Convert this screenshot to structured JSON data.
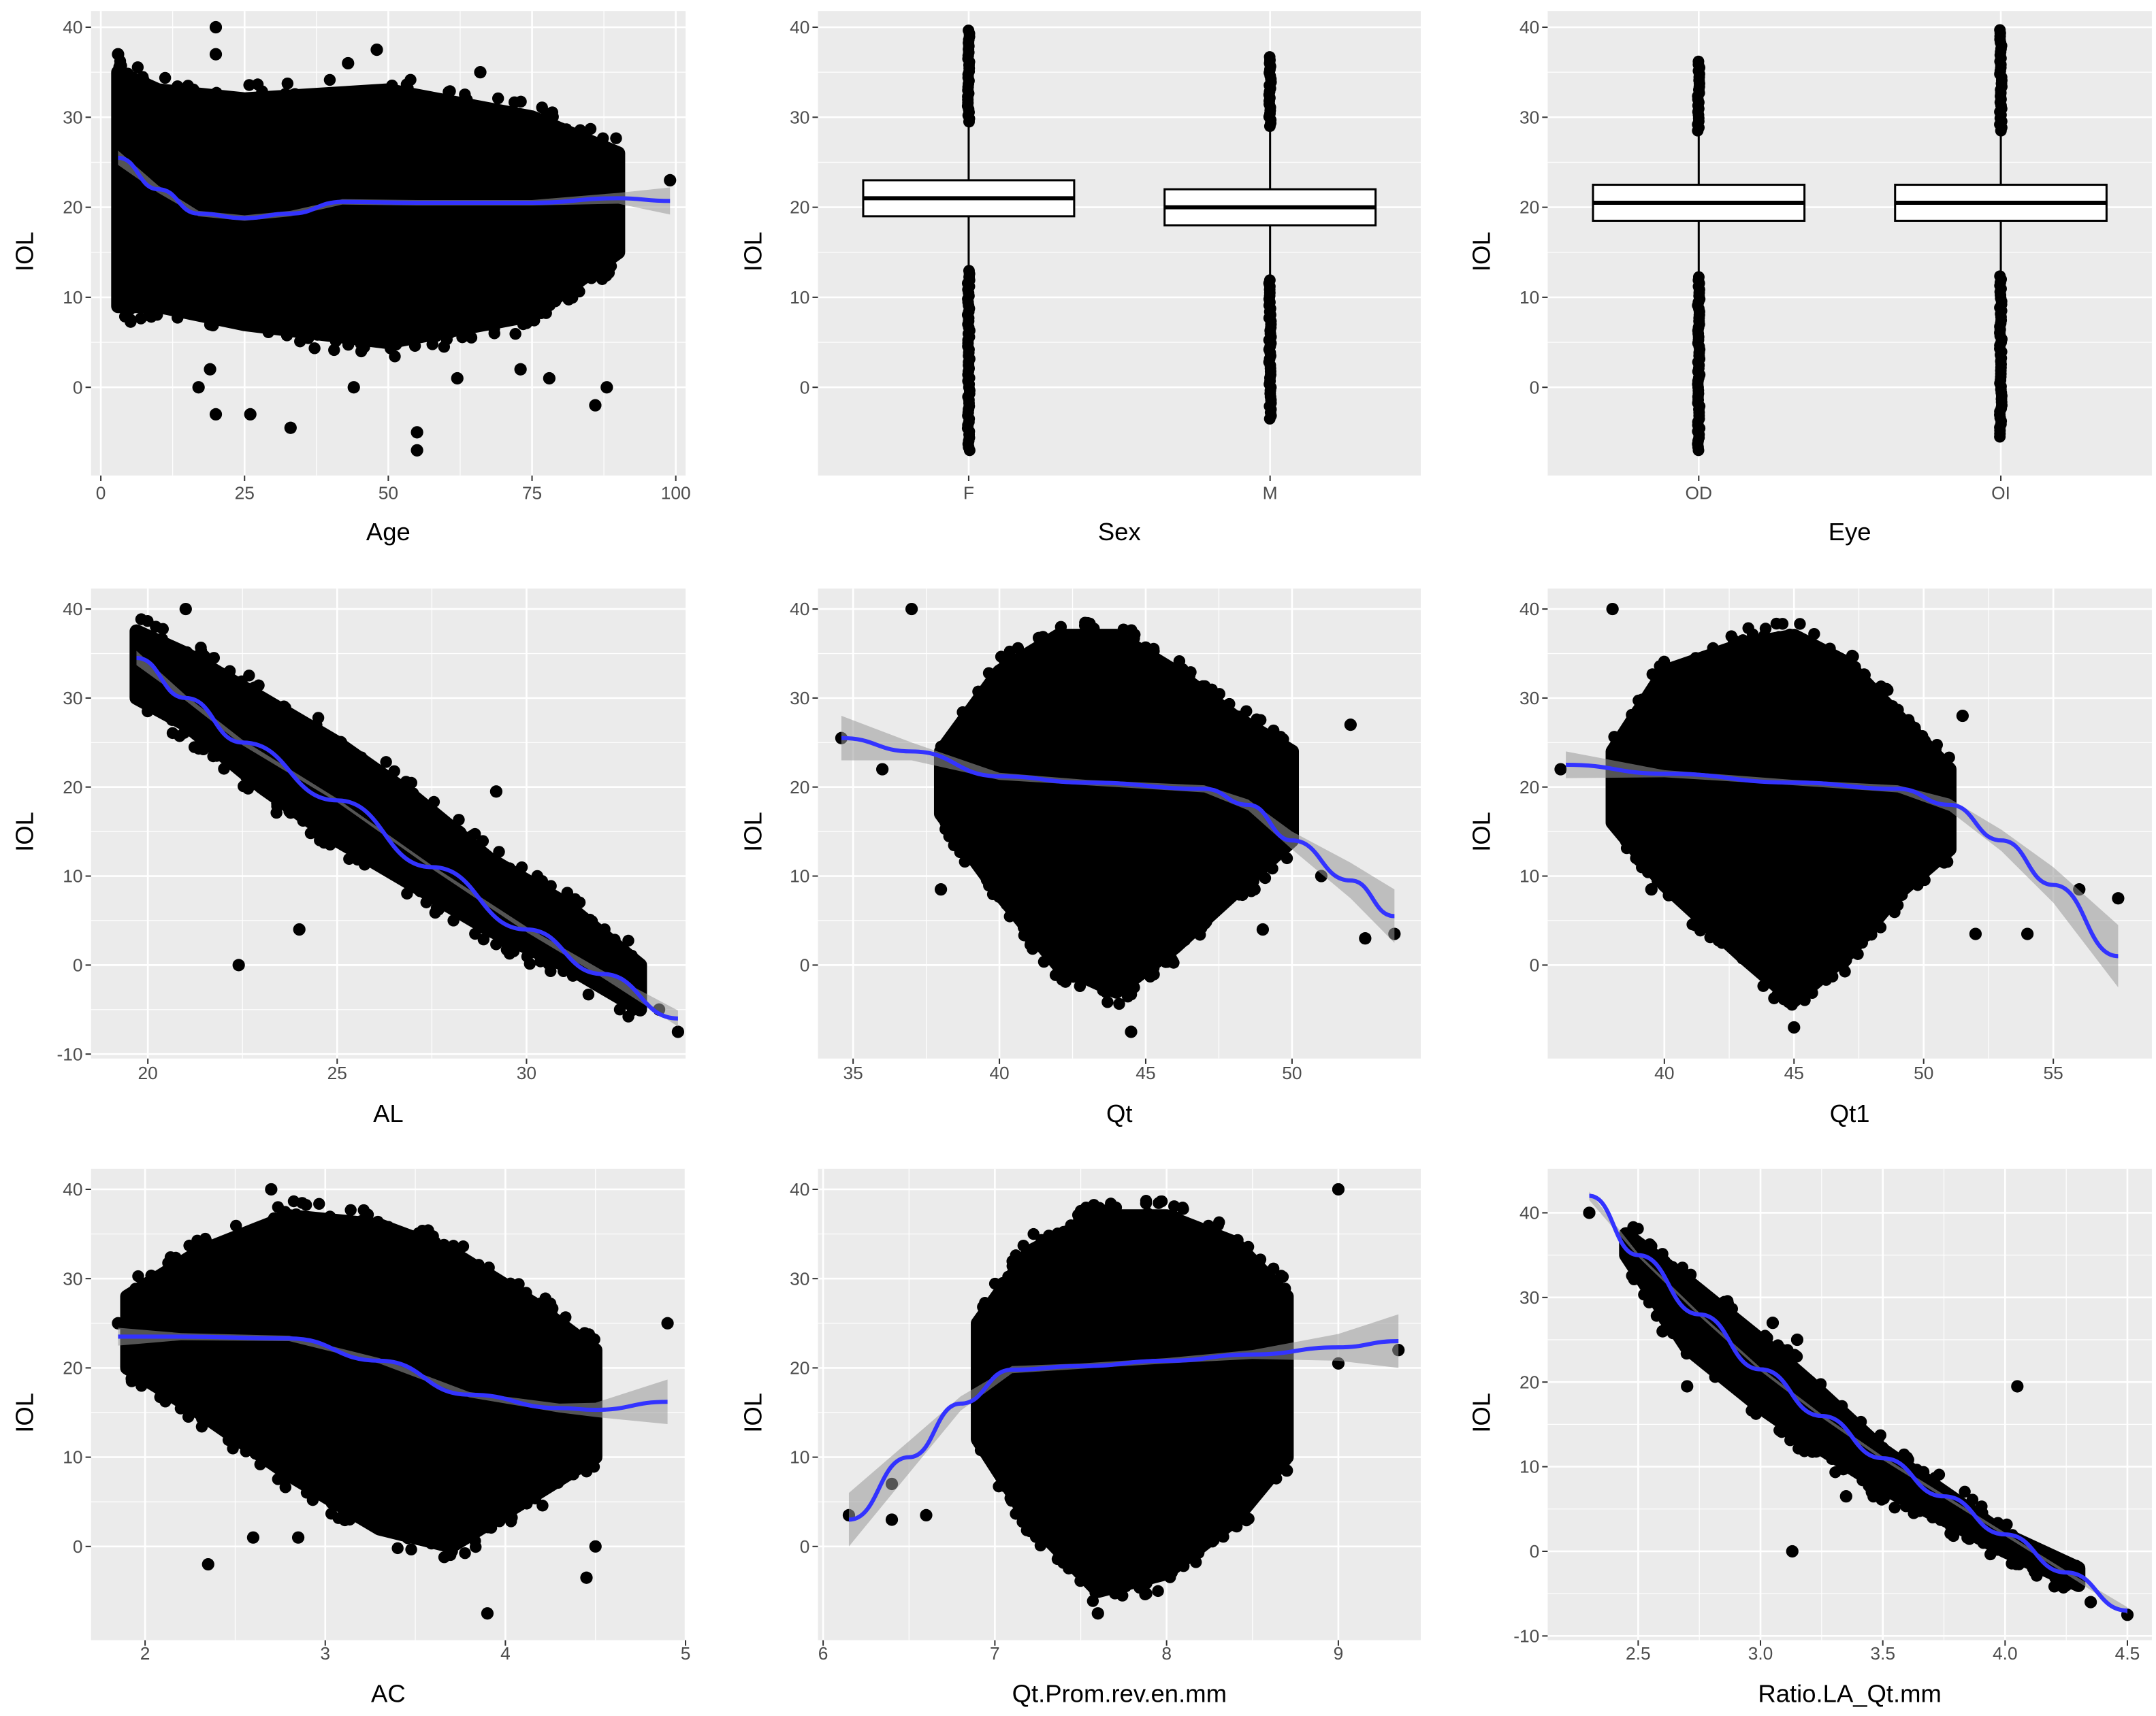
{
  "chart_data": [
    {
      "type": "scatter",
      "xlabel": "Age",
      "ylabel": "IOL",
      "xlim": [
        -1.7,
        101.7
      ],
      "ylim": [
        -9.8,
        41.8
      ],
      "xticks": [
        0,
        25,
        50,
        75,
        100
      ],
      "xtick_labels": [
        "0",
        "25",
        "50",
        "75",
        "100"
      ],
      "yticks": [
        0,
        10,
        20,
        30,
        40
      ],
      "ytick_labels": [
        "0",
        "10",
        "20",
        "30",
        "40"
      ],
      "grid": true,
      "cloud": [
        [
          3,
          9,
          35
        ],
        [
          10,
          9,
          33
        ],
        [
          25,
          7,
          32
        ],
        [
          50,
          5,
          33
        ],
        [
          75,
          8,
          30
        ],
        [
          90,
          15,
          26
        ]
      ],
      "outliers": [
        [
          20,
          40
        ],
        [
          20,
          37
        ],
        [
          3,
          37
        ],
        [
          48,
          37.5
        ],
        [
          43,
          36
        ],
        [
          66,
          35
        ],
        [
          19,
          2
        ],
        [
          17,
          0
        ],
        [
          20,
          -3
        ],
        [
          26,
          -3
        ],
        [
          33,
          -4.5
        ],
        [
          44,
          0
        ],
        [
          55,
          -7
        ],
        [
          55,
          -5
        ],
        [
          62,
          1
        ],
        [
          86,
          -2
        ],
        [
          88,
          0
        ],
        [
          99,
          23
        ],
        [
          78,
          1
        ],
        [
          73,
          2
        ]
      ],
      "smooth": [
        [
          3,
          25.5,
          0.8
        ],
        [
          10,
          22,
          0.4
        ],
        [
          17,
          19.3,
          0.3
        ],
        [
          25,
          18.8,
          0.3
        ],
        [
          33,
          19.3,
          0.3
        ],
        [
          42,
          20.6,
          0.3
        ],
        [
          55,
          20.5,
          0.3
        ],
        [
          75,
          20.5,
          0.3
        ],
        [
          90,
          21,
          0.6
        ],
        [
          99,
          20.7,
          1.5
        ]
      ]
    },
    {
      "type": "boxplot",
      "xlabel": "Sex",
      "ylabel": "IOL",
      "categories": [
        "F",
        "M"
      ],
      "ylim": [
        -9.8,
        41.8
      ],
      "yticks": [
        0,
        10,
        20,
        30,
        40
      ],
      "ytick_labels": [
        "0",
        "10",
        "20",
        "30",
        "40"
      ],
      "grid": true,
      "boxes": [
        {
          "q1": 19,
          "median": 21,
          "q3": 23,
          "whisker_low": 13,
          "whisker_high": 29.5,
          "outlier_low": -7,
          "outlier_high": 40
        },
        {
          "q1": 18,
          "median": 20,
          "q3": 22,
          "whisker_low": 12,
          "whisker_high": 29,
          "outlier_low": -3.5,
          "outlier_high": 37
        }
      ]
    },
    {
      "type": "boxplot",
      "xlabel": "Eye",
      "ylabel": "IOL",
      "categories": [
        "OD",
        "OI"
      ],
      "ylim": [
        -9.8,
        41.8
      ],
      "yticks": [
        0,
        10,
        20,
        30,
        40
      ],
      "ytick_labels": [
        "0",
        "10",
        "20",
        "30",
        "40"
      ],
      "grid": true,
      "boxes": [
        {
          "q1": 18.5,
          "median": 20.5,
          "q3": 22.5,
          "whisker_low": 12.5,
          "whisker_high": 28.5,
          "outlier_low": -7,
          "outlier_high": 36.5
        },
        {
          "q1": 18.5,
          "median": 20.5,
          "q3": 22.5,
          "whisker_low": 12.5,
          "whisker_high": 28.5,
          "outlier_low": -5.5,
          "outlier_high": 40
        }
      ]
    },
    {
      "type": "scatter",
      "xlabel": "AL",
      "ylabel": "IOL",
      "xlim": [
        18.5,
        34.2
      ],
      "ylim": [
        -10.5,
        42.3
      ],
      "xticks": [
        20,
        25,
        30
      ],
      "xtick_labels": [
        "20",
        "25",
        "30"
      ],
      "yticks": [
        -10,
        0,
        10,
        20,
        30,
        40
      ],
      "ytick_labels": [
        "-10",
        "0",
        "10",
        "20",
        "30",
        "40"
      ],
      "grid": true,
      "cloud": [
        [
          19.7,
          30,
          37.5
        ],
        [
          21,
          27,
          35
        ],
        [
          23,
          20,
          30
        ],
        [
          25,
          14,
          25
        ],
        [
          27,
          9,
          19
        ],
        [
          29,
          4,
          12
        ],
        [
          31,
          0,
          7
        ],
        [
          33,
          -5,
          0
        ]
      ],
      "outliers": [
        [
          21,
          40
        ],
        [
          22.4,
          0
        ],
        [
          29.2,
          19.5
        ],
        [
          24,
          4
        ],
        [
          30.5,
          8
        ],
        [
          34,
          -7.5
        ],
        [
          33.5,
          -5
        ]
      ],
      "smooth": [
        [
          19.7,
          34.5,
          0.8
        ],
        [
          21,
          30,
          0.3
        ],
        [
          22.5,
          25,
          0.3
        ],
        [
          25,
          18.5,
          0.2
        ],
        [
          27.5,
          11,
          0.2
        ],
        [
          30,
          4,
          0.3
        ],
        [
          32,
          -1,
          0.4
        ],
        [
          34,
          -6,
          0.9
        ]
      ]
    },
    {
      "type": "scatter",
      "xlabel": "Qt",
      "ylabel": "IOL",
      "xlim": [
        33.8,
        54.4
      ],
      "ylim": [
        -10.5,
        42.3
      ],
      "xticks": [
        35,
        40,
        45,
        50
      ],
      "xtick_labels": [
        "35",
        "40",
        "45",
        "50"
      ],
      "yticks": [
        0,
        10,
        20,
        30,
        40
      ],
      "ytick_labels": [
        "0",
        "10",
        "20",
        "30",
        "40"
      ],
      "grid": true,
      "cloud": [
        [
          38,
          17,
          24
        ],
        [
          40,
          8,
          33
        ],
        [
          42,
          0,
          37
        ],
        [
          44,
          -3,
          37
        ],
        [
          46,
          2,
          33
        ],
        [
          48,
          8,
          28
        ],
        [
          50,
          14,
          24
        ]
      ],
      "outliers": [
        [
          37,
          40
        ],
        [
          34.6,
          25.5
        ],
        [
          36,
          22
        ],
        [
          38,
          8.5
        ],
        [
          52.5,
          3
        ],
        [
          53.5,
          3.5
        ],
        [
          51,
          10
        ],
        [
          52,
          27
        ],
        [
          49,
          4
        ],
        [
          44.5,
          -7.5
        ]
      ],
      "smooth": [
        [
          34.6,
          25.5,
          2.5
        ],
        [
          37,
          24,
          1
        ],
        [
          40,
          21.2,
          0.4
        ],
        [
          43,
          20.5,
          0.3
        ],
        [
          47,
          19.8,
          0.4
        ],
        [
          48.5,
          18,
          0.6
        ],
        [
          50,
          14,
          1
        ],
        [
          52,
          9.5,
          2
        ],
        [
          53.5,
          5.5,
          3
        ]
      ]
    },
    {
      "type": "scatter",
      "xlabel": "Qt1",
      "ylabel": "IOL",
      "xlim": [
        35.5,
        58.8
      ],
      "ylim": [
        -10.5,
        42.3
      ],
      "xticks": [
        40,
        45,
        50,
        55
      ],
      "xtick_labels": [
        "40",
        "45",
        "50",
        "55"
      ],
      "yticks": [
        0,
        10,
        20,
        30,
        40
      ],
      "ytick_labels": [
        "0",
        "10",
        "20",
        "30",
        "40"
      ],
      "grid": true,
      "cloud": [
        [
          38,
          16,
          24
        ],
        [
          40,
          9,
          33
        ],
        [
          43,
          1,
          36
        ],
        [
          45,
          -4,
          37
        ],
        [
          47,
          1,
          34
        ],
        [
          49,
          8,
          28
        ],
        [
          51,
          13,
          22
        ]
      ],
      "outliers": [
        [
          38,
          40
        ],
        [
          36,
          22
        ],
        [
          39.5,
          8.5
        ],
        [
          52,
          3.5
        ],
        [
          54,
          3.5
        ],
        [
          56,
          8.5
        ],
        [
          57.5,
          7.5
        ],
        [
          51.5,
          28
        ],
        [
          45,
          -7
        ]
      ],
      "smooth": [
        [
          36.2,
          22.5,
          1.5
        ],
        [
          40,
          21.5,
          0.4
        ],
        [
          45,
          20.5,
          0.3
        ],
        [
          49,
          19.8,
          0.4
        ],
        [
          51,
          18,
          0.7
        ],
        [
          53,
          14,
          1.2
        ],
        [
          55,
          9,
          2
        ],
        [
          57.5,
          1,
          3.5
        ]
      ]
    },
    {
      "type": "scatter",
      "xlabel": "AC",
      "ylabel": "IOL",
      "xlim": [
        1.7,
        5.0
      ],
      "ylim": [
        -10.5,
        42.3
      ],
      "xticks": [
        2,
        3,
        4,
        5
      ],
      "xtick_labels": [
        "2",
        "3",
        "4",
        "5"
      ],
      "yticks": [
        0,
        10,
        20,
        30,
        40
      ],
      "ytick_labels": [
        "0",
        "10",
        "20",
        "30",
        "40"
      ],
      "grid": true,
      "cloud": [
        [
          1.9,
          20,
          28
        ],
        [
          2.3,
          15,
          33
        ],
        [
          2.8,
          8,
          37
        ],
        [
          3.3,
          2,
          36
        ],
        [
          3.7,
          0,
          33
        ],
        [
          4.1,
          5,
          28
        ],
        [
          4.5,
          10,
          22
        ]
      ],
      "outliers": [
        [
          2.7,
          40
        ],
        [
          2.35,
          -2
        ],
        [
          2.6,
          1
        ],
        [
          2.85,
          1
        ],
        [
          3.9,
          -7.5
        ],
        [
          4.45,
          -3.5
        ],
        [
          4.9,
          25
        ],
        [
          4.5,
          0
        ],
        [
          1.85,
          25
        ]
      ],
      "smooth": [
        [
          1.85,
          23.5,
          1
        ],
        [
          2.2,
          23.5,
          0.4
        ],
        [
          2.8,
          23.3,
          0.3
        ],
        [
          3.3,
          20.8,
          0.3
        ],
        [
          3.8,
          17,
          0.3
        ],
        [
          4.3,
          15.5,
          0.5
        ],
        [
          4.5,
          15.3,
          0.8
        ],
        [
          4.9,
          16.2,
          2.5
        ]
      ]
    },
    {
      "type": "scatter",
      "xlabel": "Qt.Prom.rev.en.mm",
      "ylabel": "IOL",
      "xlim": [
        5.97,
        9.48
      ],
      "ylim": [
        -10.5,
        42.3
      ],
      "xticks": [
        6,
        7,
        8,
        9
      ],
      "xtick_labels": [
        "6",
        "7",
        "8",
        "9"
      ],
      "yticks": [
        0,
        10,
        20,
        30,
        40
      ],
      "ytick_labels": [
        "0",
        "10",
        "20",
        "30",
        "40"
      ],
      "grid": true,
      "cloud": [
        [
          6.9,
          12,
          25
        ],
        [
          7.2,
          3,
          33
        ],
        [
          7.6,
          -5,
          37
        ],
        [
          8.0,
          -3,
          37
        ],
        [
          8.4,
          3,
          34
        ],
        [
          8.7,
          10,
          28
        ]
      ],
      "outliers": [
        [
          6.15,
          3.5
        ],
        [
          6.4,
          7
        ],
        [
          6.4,
          3
        ],
        [
          6.6,
          3.5
        ],
        [
          9,
          40
        ],
        [
          9.35,
          22
        ],
        [
          9,
          20.5
        ],
        [
          8.7,
          8.5
        ],
        [
          7.6,
          -7.5
        ]
      ],
      "smooth": [
        [
          6.15,
          3,
          3
        ],
        [
          6.5,
          10,
          1.8
        ],
        [
          6.8,
          16,
          0.8
        ],
        [
          7.1,
          19.8,
          0.4
        ],
        [
          7.5,
          20.2,
          0.3
        ],
        [
          8,
          20.8,
          0.3
        ],
        [
          8.5,
          21.5,
          0.5
        ],
        [
          9,
          22.3,
          1.5
        ],
        [
          9.35,
          23,
          3
        ]
      ]
    },
    {
      "type": "scatter",
      "xlabel": "Ratio.LA_Qt.mm",
      "ylabel": "IOL",
      "xlim": [
        2.13,
        4.6
      ],
      "ylim": [
        -10.5,
        45.2
      ],
      "xticks": [
        2.5,
        3.0,
        3.5,
        4.0,
        4.5
      ],
      "xtick_labels": [
        "2.5",
        "3.0",
        "3.5",
        "4.0",
        "4.5"
      ],
      "yticks": [
        -10,
        0,
        10,
        20,
        30,
        40
      ],
      "ytick_labels": [
        "-10",
        "0",
        "10",
        "20",
        "30",
        "40"
      ],
      "grid": true,
      "cloud": [
        [
          2.45,
          35,
          37.5
        ],
        [
          2.7,
          24,
          32
        ],
        [
          3.0,
          17,
          25
        ],
        [
          3.2,
          13,
          20
        ],
        [
          3.5,
          7.5,
          12
        ],
        [
          3.8,
          3,
          6
        ],
        [
          4.0,
          0,
          2
        ],
        [
          4.3,
          -4,
          -2
        ]
      ],
      "outliers": [
        [
          2.3,
          40
        ],
        [
          2.6,
          26
        ],
        [
          2.7,
          19.5
        ],
        [
          3.05,
          27
        ],
        [
          3.15,
          25
        ],
        [
          3.35,
          6.5
        ],
        [
          3.13,
          0
        ],
        [
          4.05,
          19.5
        ],
        [
          4.5,
          -7.5
        ],
        [
          4.35,
          -6
        ],
        [
          4.25,
          -4
        ]
      ],
      "smooth": [
        [
          2.3,
          42,
          0.5
        ],
        [
          2.5,
          35,
          0.2
        ],
        [
          2.75,
          28,
          0.2
        ],
        [
          3.0,
          21.5,
          0.2
        ],
        [
          3.25,
          16,
          0.2
        ],
        [
          3.5,
          11,
          0.2
        ],
        [
          3.75,
          6.5,
          0.2
        ],
        [
          4.0,
          2,
          0.2
        ],
        [
          4.25,
          -2.5,
          0.2
        ],
        [
          4.5,
          -7,
          0.4
        ]
      ]
    }
  ],
  "colors": {
    "panel": "#ebebeb",
    "grid": "#ffffff",
    "points": "#000000",
    "smooth": "#3333ff",
    "band": "#999999",
    "tick_text": "#4d4d4d"
  }
}
